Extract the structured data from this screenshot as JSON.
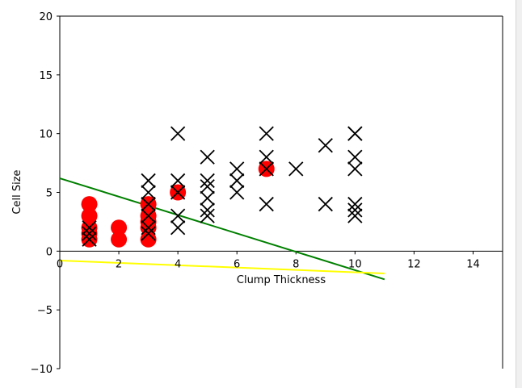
{
  "chart_data": {
    "type": "scatter",
    "title": "",
    "xlabel": "Clump Thickness",
    "ylabel": "Cell Size",
    "xlim": [
      0,
      15
    ],
    "ylim": [
      -10,
      20
    ],
    "xticks": [
      "0",
      "2",
      "4",
      "6",
      "8",
      "10",
      "12",
      "14"
    ],
    "yticks": [
      "−10",
      "−5",
      "0",
      "5",
      "10",
      "15",
      "20"
    ],
    "xtick_values": [
      0,
      2,
      4,
      6,
      8,
      10,
      12,
      14
    ],
    "ytick_values": [
      -10,
      -5,
      0,
      5,
      10,
      15,
      20
    ],
    "grid": false,
    "legend": "none",
    "spines": "left and bottom through zero (origin axes)",
    "series": [
      {
        "marker": "filled-circle",
        "color": "#ff0000",
        "points": [
          [
            1,
            1
          ],
          [
            1,
            1.5
          ],
          [
            1,
            2
          ],
          [
            1,
            3
          ],
          [
            1,
            4
          ],
          [
            2,
            1
          ],
          [
            2,
            2
          ],
          [
            3,
            1
          ],
          [
            3,
            2
          ],
          [
            3,
            2.5
          ],
          [
            3,
            3
          ],
          [
            3,
            4
          ],
          [
            4,
            5
          ],
          [
            7,
            7
          ]
        ]
      },
      {
        "marker": "x",
        "color": "#000000",
        "points": [
          [
            1,
            1
          ],
          [
            1,
            1.5
          ],
          [
            1,
            2
          ],
          [
            3,
            1.5
          ],
          [
            3,
            2
          ],
          [
            3,
            3
          ],
          [
            3,
            4
          ],
          [
            3,
            5
          ],
          [
            3,
            6
          ],
          [
            4,
            2
          ],
          [
            4,
            3
          ],
          [
            4,
            5
          ],
          [
            4,
            6
          ],
          [
            4,
            10
          ],
          [
            5,
            3
          ],
          [
            5,
            3.5
          ],
          [
            5,
            4.5
          ],
          [
            5,
            5.5
          ],
          [
            5,
            6
          ],
          [
            5,
            8
          ],
          [
            6,
            5
          ],
          [
            6,
            6
          ],
          [
            6,
            7
          ],
          [
            7,
            4
          ],
          [
            7,
            7
          ],
          [
            7,
            8
          ],
          [
            7,
            10
          ],
          [
            8,
            7
          ],
          [
            9,
            4
          ],
          [
            9,
            9
          ],
          [
            10,
            3
          ],
          [
            10,
            3.5
          ],
          [
            10,
            4
          ],
          [
            10,
            7
          ],
          [
            10,
            8
          ],
          [
            10,
            10
          ],
          [
            10,
            10
          ]
        ]
      }
    ],
    "lines": [
      {
        "color": "#008000",
        "points": [
          [
            0,
            6.2
          ],
          [
            11,
            -2.4
          ]
        ]
      },
      {
        "color": "#ffff00",
        "points": [
          [
            0,
            -0.8
          ],
          [
            11,
            -1.9
          ]
        ]
      }
    ]
  }
}
